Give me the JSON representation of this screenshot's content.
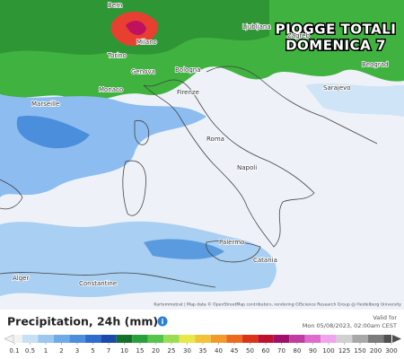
{
  "map": {
    "title_line1": "PIOGGE TOTALI",
    "title_line2": "DOMENICA 7",
    "cities": [
      "Bern",
      "Milano",
      "Torino",
      "Genova",
      "Bologna",
      "Firenze",
      "Monaco",
      "Marseille",
      "Ljubljana",
      "Zagreb",
      "Sarajevo",
      "Beograd",
      "Roma",
      "Napoli",
      "Palermo",
      "Catania",
      "Alger",
      "Constantine"
    ],
    "attribution": "Kartemmetrat | Map data © OpenStreetMap contributors, rendering GIScience Research Group @ Heidelberg University"
  },
  "legend": {
    "title": "Precipitation, 24h (mm)",
    "valid_label": "Valid for",
    "valid_time": "Mon 05/08/2023, 02:00am CEST",
    "ticks": [
      0.1,
      0.5,
      1,
      2,
      3,
      5,
      7,
      10,
      15,
      20,
      25,
      30,
      35,
      40,
      45,
      50,
      60,
      70,
      80,
      90,
      100,
      125,
      150,
      200,
      300
    ],
    "colors": [
      "#f2f2f2",
      "#c8e0f6",
      "#9cc8f0",
      "#6fa9e6",
      "#4b8edc",
      "#2f6dcc",
      "#1c4aa8",
      "#16702a",
      "#27a03a",
      "#55c44a",
      "#9bdc55",
      "#e8e848",
      "#f2c23a",
      "#f29a2a",
      "#ec6a1e",
      "#dc3418",
      "#c01030",
      "#a0106a",
      "#c03ca0",
      "#de6ccc",
      "#f0a4ee",
      "#d0d0d0",
      "#a8a8a8",
      "#7c7c7c",
      "#505050"
    ]
  }
}
